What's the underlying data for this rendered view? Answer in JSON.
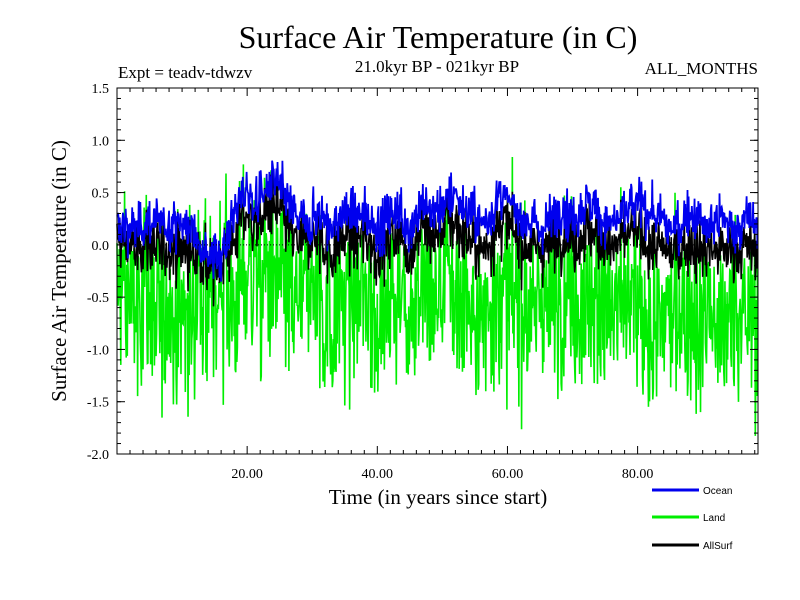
{
  "chart_data": {
    "type": "line",
    "title": "Surface Air Temperature (in C)",
    "subtitle_left": "Expt = teadv-tdwzv",
    "subtitle_center": "21.0kyr BP - 021kyr BP",
    "subtitle_right": "ALL_MONTHS",
    "xlabel": "Time (in years since start)",
    "ylabel": "Surface Air Temperature (in C)",
    "xlim": [
      0,
      98.5
    ],
    "ylim": [
      -2.0,
      1.5
    ],
    "x_ticks": [
      20,
      40,
      60,
      80
    ],
    "x_tick_labels": [
      "20.00",
      "40.00",
      "60.00",
      "80.00"
    ],
    "y_ticks": [
      -2.0,
      -1.5,
      -1.0,
      -0.5,
      0.0,
      0.5,
      1.0,
      1.5
    ],
    "y_tick_labels": [
      "-2.0",
      "-1.5",
      "-1.0",
      "-0.5",
      "0.0",
      "0.5",
      "1.0",
      "1.5"
    ],
    "zero_line": 0.0,
    "samples_per_year": 12,
    "series": [
      {
        "name": "Ocean",
        "color": "#0000ee",
        "description": "monthly values fluctuating around a slowly varying baseline",
        "baseline_by_year": [
          0.15,
          0.2,
          0.18,
          0.12,
          0.2,
          0.25,
          0.2,
          0.15,
          0.2,
          0.22,
          0.2,
          0.15,
          0.1,
          0.05,
          -0.05,
          -0.15,
          -0.05,
          0.1,
          0.3,
          0.45,
          0.5,
          0.4,
          0.45,
          0.55,
          0.6,
          0.55,
          0.45,
          0.3,
          0.25,
          0.2,
          0.25,
          0.3,
          0.25,
          0.15,
          0.2,
          0.35,
          0.3,
          0.25,
          0.3,
          0.25,
          0.15,
          0.2,
          0.3,
          0.35,
          0.25,
          0.15,
          0.3,
          0.4,
          0.35,
          0.3,
          0.4,
          0.45,
          0.5,
          0.4,
          0.3,
          0.25,
          0.2,
          0.25,
          0.35,
          0.45,
          0.4,
          0.35,
          0.3,
          0.25,
          0.2,
          0.15,
          0.2,
          0.3,
          0.35,
          0.3,
          0.25,
          0.3,
          0.4,
          0.35,
          0.3,
          0.25,
          0.2,
          0.25,
          0.3,
          0.35,
          0.4,
          0.35,
          0.3,
          0.25,
          0.2,
          0.15,
          0.2,
          0.25,
          0.3,
          0.25,
          0.2,
          0.15,
          0.2,
          0.25,
          0.2,
          0.15,
          0.2,
          0.25,
          0.2
        ],
        "noise": 0.12
      },
      {
        "name": "Land",
        "color": "#00ee00",
        "description": "monthly values with large amplitude around a baseline near -0.5",
        "baseline_by_year": [
          -0.3,
          -0.5,
          -0.6,
          -0.5,
          -0.4,
          -0.6,
          -0.7,
          -0.5,
          -0.6,
          -0.8,
          -0.7,
          -0.6,
          -0.5,
          -0.6,
          -0.7,
          -0.5,
          -0.4,
          -0.5,
          -0.6,
          -0.3,
          -0.2,
          -0.3,
          -0.4,
          -0.3,
          -0.2,
          -0.3,
          -0.5,
          -0.6,
          -0.5,
          -0.4,
          -0.5,
          -0.5,
          -0.6,
          -0.7,
          -0.5,
          -0.6,
          -0.5,
          -0.4,
          -0.5,
          -0.6,
          -0.7,
          -0.6,
          -0.5,
          -0.5,
          -0.6,
          -0.7,
          -0.5,
          -0.4,
          -0.6,
          -0.5,
          -0.4,
          -0.4,
          -0.5,
          -0.6,
          -0.5,
          -0.6,
          -0.7,
          -0.6,
          -0.5,
          -0.3,
          -0.4,
          -0.5,
          -0.6,
          -0.7,
          -0.6,
          -0.5,
          -0.6,
          -0.7,
          -0.5,
          -0.4,
          -0.5,
          -0.6,
          -0.5,
          -0.4,
          -0.5,
          -0.6,
          -0.7,
          -0.6,
          -0.5,
          -0.5,
          -0.6,
          -0.7,
          -0.8,
          -0.7,
          -0.6,
          -0.7,
          -0.8,
          -0.7,
          -0.6,
          -0.7,
          -0.6,
          -0.5,
          -0.7,
          -0.8,
          -0.7,
          -0.6,
          -0.7,
          -0.6,
          -0.7
        ],
        "noise": 0.45
      },
      {
        "name": "AllSurf",
        "color": "#000000",
        "description": "area-weighted combination of ocean and land",
        "land_weight": 0.28
      }
    ],
    "legend_position": "bottom-right"
  }
}
